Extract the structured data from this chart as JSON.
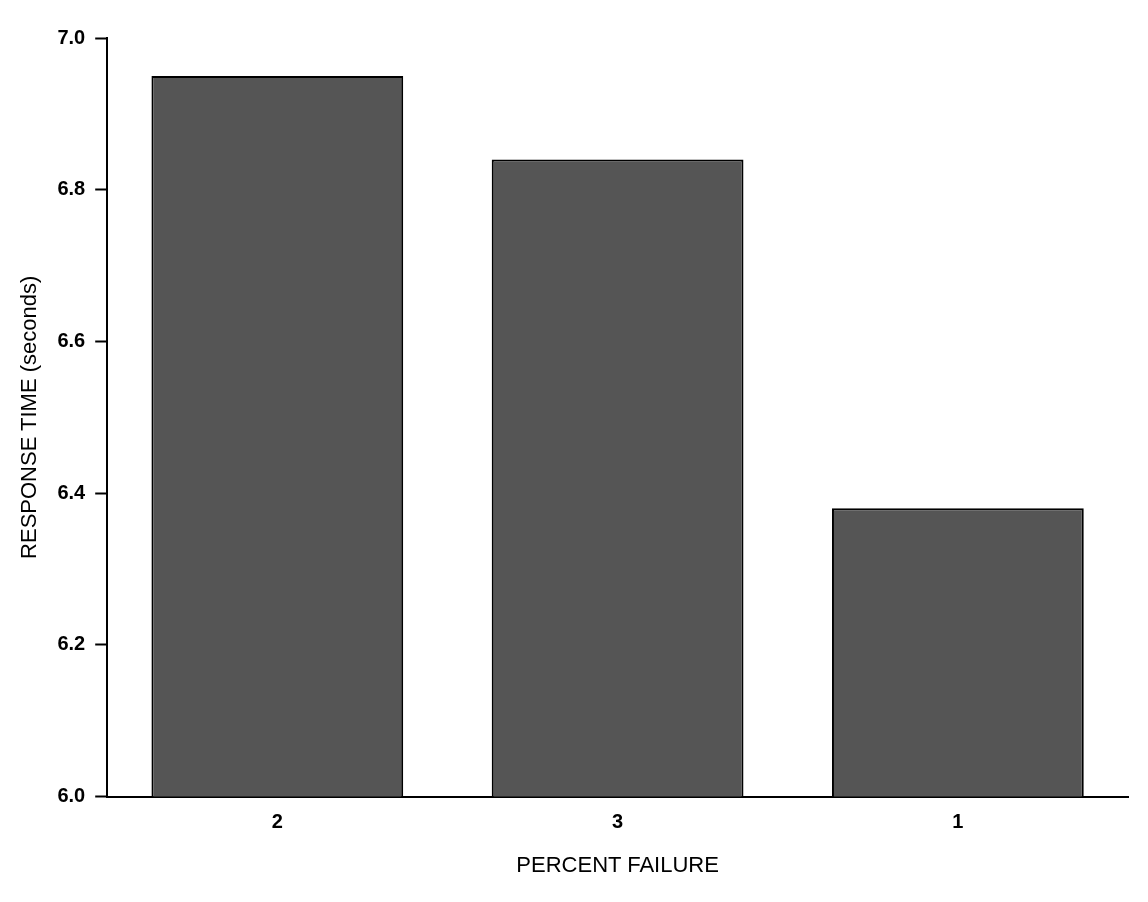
{
  "chart_data": {
    "type": "bar",
    "xlabel": "PERCENT FAILURE",
    "ylabel": "RESPONSE TIME (seconds)",
    "categories": [
      "2",
      "3",
      "1"
    ],
    "values": [
      6.95,
      6.84,
      6.38
    ],
    "color": "#555555",
    "ylim": [
      6.0,
      7.0
    ],
    "yticks": [
      {
        "value": 6.0,
        "label": "6.0"
      },
      {
        "value": 6.2,
        "label": "6.2"
      },
      {
        "value": 6.4,
        "label": "6.4"
      },
      {
        "value": 6.6,
        "label": "6.6"
      },
      {
        "value": 6.8,
        "label": "6.8"
      },
      {
        "value": 7.0,
        "label": "7.0"
      }
    ],
    "grid": false,
    "legend": false
  }
}
